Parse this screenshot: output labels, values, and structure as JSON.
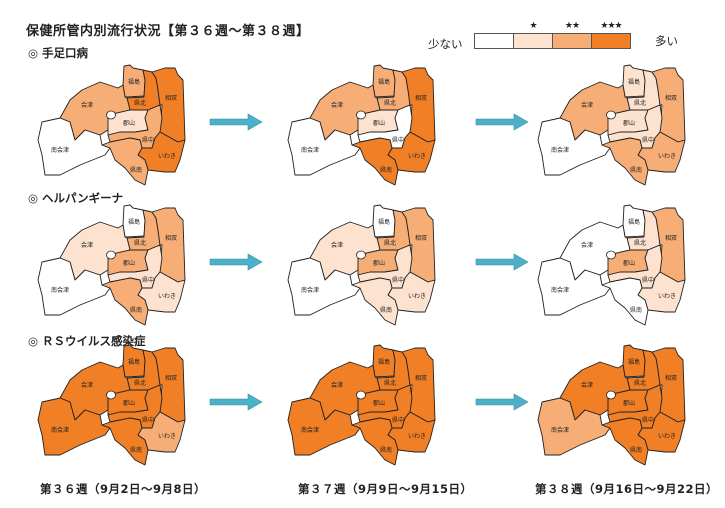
{
  "title": "保健所管内別流行状況【第３６週～第３８週】",
  "legend": {
    "low_label": "少ない",
    "high_label": "多い",
    "levels": [
      {
        "stars": "",
        "color": "#ffffff"
      },
      {
        "stars": "★",
        "color": "#fde3cf"
      },
      {
        "stars": "★★",
        "color": "#f6ae76"
      },
      {
        "stars": "★★★",
        "color": "#f07f25"
      }
    ]
  },
  "arrow_color": "#4bb0c8",
  "regions": [
    "福島",
    "県北",
    "相双",
    "会津",
    "郡山",
    "県中",
    "南会津",
    "いわき",
    "県南"
  ],
  "weeks": [
    "第３６週（9月2日～9月8日）",
    "第３７週（9月9日～9月15日）",
    "第３８週（9月16日～9月22日）"
  ],
  "diseases": [
    {
      "label": "◎ 手足口病",
      "levels": [
        {
          "福島": 2,
          "県北": 3,
          "相双": 3,
          "会津": 2,
          "郡山": 1,
          "県中": 2,
          "南会津": 0,
          "いわき": 3,
          "県南": 2
        },
        {
          "福島": 2,
          "県北": 2,
          "相双": 3,
          "会津": 2,
          "郡山": 1,
          "県中": 0,
          "南会津": 0,
          "いわき": 3,
          "県南": 3
        },
        {
          "福島": 1,
          "県北": 1,
          "相双": 2,
          "会津": 2,
          "郡山": 1,
          "県中": 1,
          "南会津": 0,
          "いわき": 2,
          "県南": 2
        }
      ]
    },
    {
      "label": "◎ ヘルパンギーナ",
      "levels": [
        {
          "福島": 0,
          "県北": 2,
          "相双": 2,
          "会津": 1,
          "郡山": 2,
          "県中": 1,
          "南会津": 0,
          "いわき": 1,
          "県南": 2
        },
        {
          "福島": 0,
          "県北": 2,
          "相双": 2,
          "会津": 1,
          "郡山": 2,
          "県中": 1,
          "南会津": 0,
          "いわき": 1,
          "県南": 1
        },
        {
          "福島": 0,
          "県北": 1,
          "相双": 2,
          "会津": 0,
          "郡山": 2,
          "県中": 1,
          "南会津": 0,
          "いわき": 1,
          "県南": 0
        }
      ]
    },
    {
      "label": "◎ ＲＳウイルス感染症",
      "levels": [
        {
          "福島": 3,
          "県北": 3,
          "相双": 3,
          "会津": 3,
          "郡山": 3,
          "県中": 3,
          "南会津": 3,
          "いわき": 2,
          "県南": 3
        },
        {
          "福島": 3,
          "県北": 3,
          "相双": 3,
          "会津": 3,
          "郡山": 3,
          "県中": 3,
          "南会津": 3,
          "いわき": 3,
          "県南": 3
        },
        {
          "福島": 3,
          "県北": 3,
          "相双": 3,
          "会津": 3,
          "郡山": 3,
          "県中": 3,
          "南会津": 2,
          "いわき": 3,
          "県南": 3
        }
      ]
    }
  ]
}
